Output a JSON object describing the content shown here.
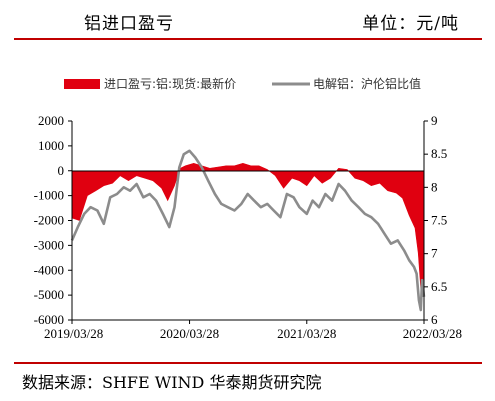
{
  "header": {
    "title": "铝进口盈亏",
    "unit": "单位：元/吨"
  },
  "footer": {
    "source": "数据来源：SHFE WIND  华泰期货研究院"
  },
  "colors": {
    "rule": "#c00000",
    "area": "#e00010",
    "line": "#8c8c8c"
  },
  "chart_data": {
    "type": "area+line",
    "title": "",
    "legend": [
      "进口盈亏:铝:现货:最新价",
      "电解铝：沪伦铝比值"
    ],
    "legend_placement": "top",
    "grid": false,
    "x_axis": {
      "ticks": [
        "2019/03/28",
        "2020/03/28",
        "2021/03/28",
        "2022/03/28"
      ],
      "range": [
        "2019/03/28",
        "2022/03/28"
      ]
    },
    "y_left": {
      "range": [
        -6000,
        2000
      ],
      "ticks": [
        "2000",
        "1000",
        "0",
        "-1000",
        "-2000",
        "-3000",
        "-4000",
        "-5000",
        "-6000"
      ]
    },
    "y_right": {
      "range": [
        6,
        9
      ],
      "ticks": [
        "9",
        "8.5",
        "8",
        "7.5",
        "7",
        "6.5",
        "6"
      ]
    },
    "series": [
      {
        "name": "进口盈亏:铝:现货:最新价",
        "kind": "area",
        "axis": "left",
        "points": [
          [
            "2019/03/28",
            -1900
          ],
          [
            "2019/04/20",
            -2000
          ],
          [
            "2019/05/15",
            -1000
          ],
          [
            "2019/06/10",
            -800
          ],
          [
            "2019/07/05",
            -600
          ],
          [
            "2019/08/01",
            -500
          ],
          [
            "2019/08/25",
            -200
          ],
          [
            "2019/09/20",
            -400
          ],
          [
            "2019/10/15",
            -200
          ],
          [
            "2019/11/10",
            -300
          ],
          [
            "2019/12/05",
            -400
          ],
          [
            "2020/01/01",
            -700
          ],
          [
            "2020/01/20",
            -1200
          ],
          [
            "2020/02/10",
            -600
          ],
          [
            "2020/02/28",
            100
          ],
          [
            "2020/03/15",
            200
          ],
          [
            "2020/04/10",
            300
          ],
          [
            "2020/05/05",
            200
          ],
          [
            "2020/05/30",
            100
          ],
          [
            "2020/06/25",
            150
          ],
          [
            "2020/07/20",
            200
          ],
          [
            "2020/08/15",
            200
          ],
          [
            "2020/09/10",
            300
          ],
          [
            "2020/10/05",
            200
          ],
          [
            "2020/10/30",
            200
          ],
          [
            "2020/11/25",
            50
          ],
          [
            "2020/12/20",
            -200
          ],
          [
            "2021/01/15",
            -700
          ],
          [
            "2021/02/10",
            -300
          ],
          [
            "2021/03/05",
            -400
          ],
          [
            "2021/03/28",
            -600
          ],
          [
            "2021/04/20",
            -200
          ],
          [
            "2021/05/15",
            -500
          ],
          [
            "2021/06/10",
            -300
          ],
          [
            "2021/07/05",
            100
          ],
          [
            "2021/08/01",
            50
          ],
          [
            "2021/08/25",
            -300
          ],
          [
            "2021/09/20",
            -400
          ],
          [
            "2021/10/15",
            -600
          ],
          [
            "2021/11/10",
            -500
          ],
          [
            "2021/12/05",
            -800
          ],
          [
            "2022/01/01",
            -900
          ],
          [
            "2022/01/20",
            -1100
          ],
          [
            "2022/02/10",
            -1800
          ],
          [
            "2022/02/28",
            -2300
          ],
          [
            "2022/03/10",
            -3300
          ],
          [
            "2022/03/20",
            -5100
          ],
          [
            "2022/03/28",
            -4900
          ]
        ]
      },
      {
        "name": "电解铝：沪伦铝比值",
        "kind": "line",
        "axis": "right",
        "points": [
          [
            "2019/03/28",
            7.2
          ],
          [
            "2019/04/15",
            7.4
          ],
          [
            "2019/05/05",
            7.6
          ],
          [
            "2019/05/25",
            7.7
          ],
          [
            "2019/06/15",
            7.65
          ],
          [
            "2019/07/05",
            7.45
          ],
          [
            "2019/07/25",
            7.85
          ],
          [
            "2019/08/15",
            7.9
          ],
          [
            "2019/09/05",
            8.0
          ],
          [
            "2019/09/25",
            7.95
          ],
          [
            "2019/10/15",
            8.05
          ],
          [
            "2019/11/05",
            7.85
          ],
          [
            "2019/11/25",
            7.9
          ],
          [
            "2019/12/15",
            7.8
          ],
          [
            "2020/01/05",
            7.6
          ],
          [
            "2020/01/25",
            7.4
          ],
          [
            "2020/02/10",
            7.7
          ],
          [
            "2020/02/25",
            8.3
          ],
          [
            "2020/03/10",
            8.5
          ],
          [
            "2020/03/28",
            8.55
          ],
          [
            "2020/04/15",
            8.45
          ],
          [
            "2020/05/05",
            8.3
          ],
          [
            "2020/05/25",
            8.1
          ],
          [
            "2020/06/15",
            7.9
          ],
          [
            "2020/07/05",
            7.75
          ],
          [
            "2020/07/25",
            7.7
          ],
          [
            "2020/08/15",
            7.65
          ],
          [
            "2020/09/05",
            7.75
          ],
          [
            "2020/09/25",
            7.9
          ],
          [
            "2020/10/15",
            7.8
          ],
          [
            "2020/11/05",
            7.7
          ],
          [
            "2020/11/25",
            7.75
          ],
          [
            "2020/12/15",
            7.65
          ],
          [
            "2021/01/05",
            7.55
          ],
          [
            "2021/01/25",
            7.9
          ],
          [
            "2021/02/15",
            7.85
          ],
          [
            "2021/03/05",
            7.7
          ],
          [
            "2021/03/28",
            7.6
          ],
          [
            "2021/04/15",
            7.8
          ],
          [
            "2021/05/05",
            7.7
          ],
          [
            "2021/05/25",
            7.9
          ],
          [
            "2021/06/15",
            7.8
          ],
          [
            "2021/07/05",
            8.05
          ],
          [
            "2021/07/25",
            7.95
          ],
          [
            "2021/08/15",
            7.8
          ],
          [
            "2021/09/05",
            7.7
          ],
          [
            "2021/09/25",
            7.6
          ],
          [
            "2021/10/15",
            7.55
          ],
          [
            "2021/11/05",
            7.45
          ],
          [
            "2021/11/25",
            7.3
          ],
          [
            "2021/12/15",
            7.15
          ],
          [
            "2022/01/05",
            7.2
          ],
          [
            "2022/01/25",
            7.05
          ],
          [
            "2022/02/10",
            6.9
          ],
          [
            "2022/02/25",
            6.8
          ],
          [
            "2022/03/05",
            6.7
          ],
          [
            "2022/03/12",
            6.3
          ],
          [
            "2022/03/18",
            6.15
          ],
          [
            "2022/03/22",
            6.6
          ],
          [
            "2022/03/28",
            6.35
          ]
        ]
      }
    ]
  }
}
